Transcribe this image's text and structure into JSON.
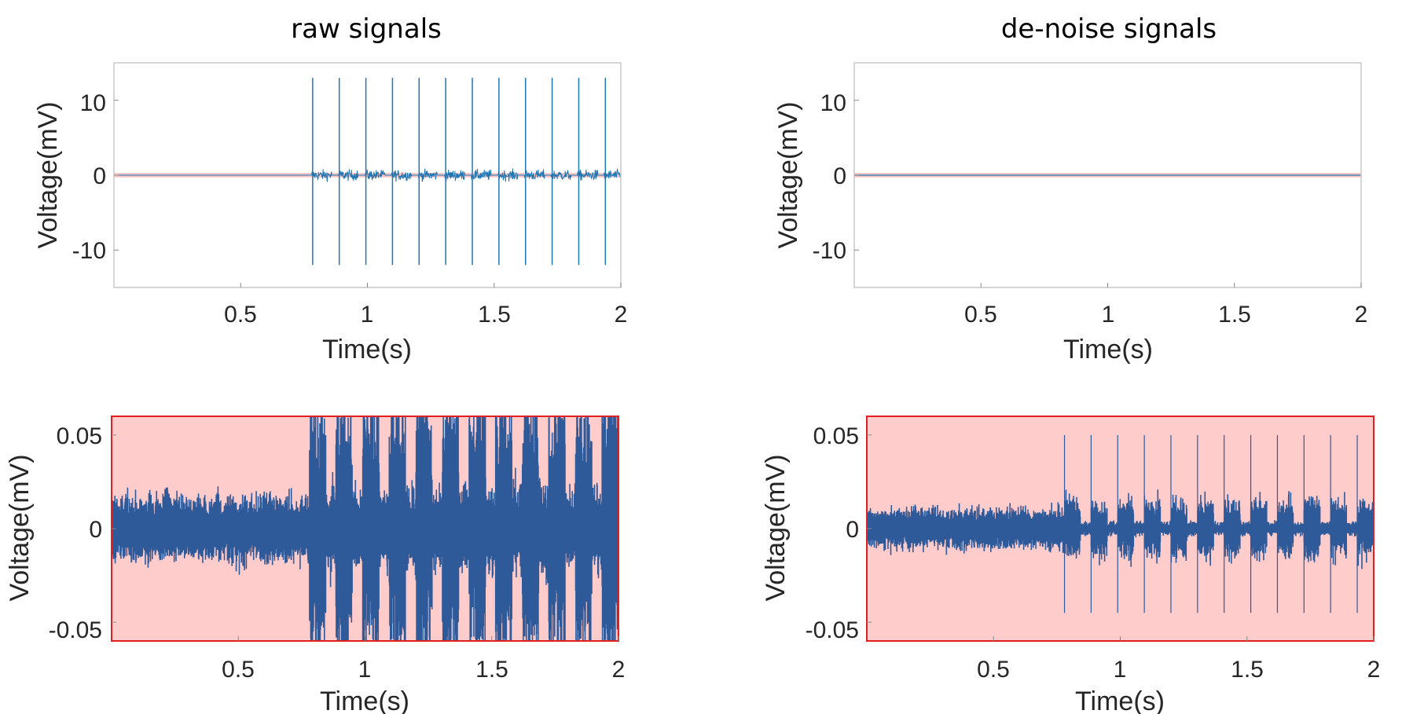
{
  "chart_data": [
    {
      "type": "line",
      "title": "raw signals",
      "xlabel": "Time(s)",
      "ylabel": "Voltage(mV)",
      "xlim": [
        0,
        2
      ],
      "ylim": [
        -15,
        15
      ],
      "xticks": [
        0.5,
        1,
        1.5,
        2
      ],
      "xtick_labels": [
        "0.5",
        "1",
        "1.5",
        "2"
      ],
      "yticks": [
        10,
        0,
        -10
      ],
      "ytick_labels": [
        "10",
        "0",
        "-10"
      ],
      "grid": false,
      "series_color": "#1f77b4",
      "highlight_band": {
        "color": "#f4a0a0",
        "ymin": -0.3,
        "ymax": 0.3
      },
      "pulse_start_s": 0.78,
      "pulse_period_s": 0.105,
      "pulse_count": 12,
      "spike_peak_mv": 13,
      "spike_trough_mv": -12,
      "burst_amplitude_mv": 1.2
    },
    {
      "type": "line",
      "title": "de-noise signals",
      "xlabel": "Time(s)",
      "ylabel": "Voltage(mV)",
      "xlim": [
        0,
        2
      ],
      "ylim": [
        -15,
        15
      ],
      "xticks": [
        0.5,
        1,
        1.5,
        2
      ],
      "xtick_labels": [
        "0.5",
        "1",
        "1.5",
        "2"
      ],
      "yticks": [
        10,
        0,
        -10
      ],
      "ytick_labels": [
        "10",
        "0",
        "-10"
      ],
      "grid": false,
      "series_color": "#1f77b4",
      "highlight_band": {
        "color": "#f4a0a0",
        "ymin": -0.3,
        "ymax": 0.3
      }
    },
    {
      "type": "line",
      "title": "",
      "xlabel": "Time(s)",
      "ylabel": "Voltage(mV)",
      "xlim": [
        0,
        2
      ],
      "ylim": [
        -0.06,
        0.06
      ],
      "xticks": [
        0.5,
        1,
        1.5,
        2
      ],
      "xtick_labels": [
        "0.5",
        "1",
        "1.5",
        "2"
      ],
      "yticks": [
        0.05,
        0,
        -0.05
      ],
      "ytick_labels": [
        "0.05",
        "0",
        "-0.05"
      ],
      "grid": false,
      "background_color": "#ffcccc",
      "border_color": "#e02020",
      "series_color": "#2f5a9a",
      "noise_amplitude_mv": 0.02,
      "pulse_start_s": 0.78,
      "pulse_period_s": 0.105,
      "pulse_count": 12,
      "burst_amplitude_mv": 0.06
    },
    {
      "type": "line",
      "title": "",
      "xlabel": "Time(s)",
      "ylabel": "Voltage(mV)",
      "xlim": [
        0,
        2
      ],
      "ylim": [
        -0.06,
        0.06
      ],
      "xticks": [
        0.5,
        1,
        1.5,
        2
      ],
      "xtick_labels": [
        "0.5",
        "1",
        "1.5",
        "2"
      ],
      "yticks": [
        0.05,
        0,
        -0.05
      ],
      "ytick_labels": [
        "0.05",
        "0",
        "-0.05"
      ],
      "grid": false,
      "background_color": "#ffcccc",
      "border_color": "#e02020",
      "series_color": "#2f5a9a",
      "noise_amplitude_mv": 0.012,
      "pulse_start_s": 0.78,
      "pulse_period_s": 0.105,
      "pulse_count": 12,
      "burst_amplitude_mv": 0.018,
      "spike_peak_mv": 0.05,
      "spike_trough_mv": -0.045
    }
  ]
}
